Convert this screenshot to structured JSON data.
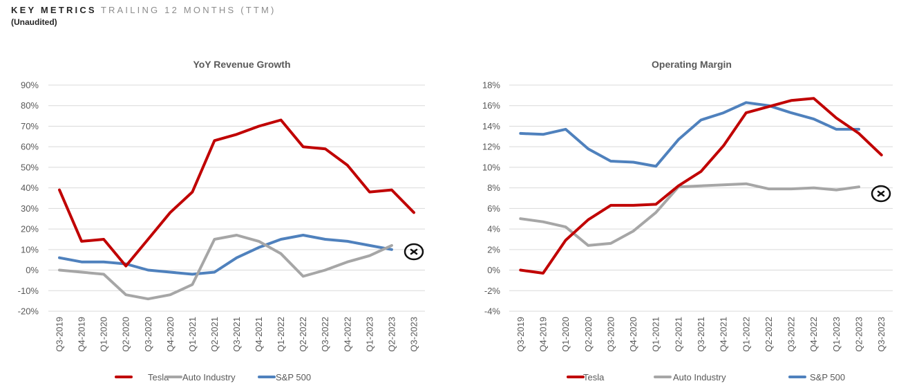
{
  "header": {
    "title": "KEY METRICS",
    "title_sub": "TRAILING 12 MONTHS (TTM)",
    "subtitle": "(Unaudited)"
  },
  "colors": {
    "tesla": "#c00000",
    "auto": "#a6a6a6",
    "sp500": "#4f81bd",
    "grid": "#d9d9d9"
  },
  "chart_data": [
    {
      "type": "line",
      "title": "YoY Revenue Growth",
      "categories": [
        "Q3-2019",
        "Q4-2019",
        "Q1-2020",
        "Q2-2020",
        "Q3-2020",
        "Q4-2020",
        "Q1-2021",
        "Q2-2021",
        "Q3-2021",
        "Q4-2021",
        "Q1-2022",
        "Q2-2022",
        "Q3-2022",
        "Q4-2022",
        "Q1-2023",
        "Q2-2023",
        "Q3-2023"
      ],
      "ylim": [
        -20,
        90
      ],
      "yticks": [
        -20,
        -10,
        0,
        10,
        20,
        30,
        40,
        50,
        60,
        70,
        80,
        90
      ],
      "ytick_labels": [
        "-20%",
        "-10%",
        "0%",
        "10%",
        "20%",
        "30%",
        "40%",
        "50%",
        "60%",
        "70%",
        "80%",
        "90%"
      ],
      "series": [
        {
          "name": "Tesla",
          "key": "tesla",
          "values": [
            39,
            14,
            15,
            2,
            15,
            28,
            38,
            63,
            66,
            70,
            73,
            60,
            59,
            51,
            38,
            39,
            28
          ]
        },
        {
          "name": "Auto Industry",
          "key": "auto",
          "values": [
            0,
            -1,
            -2,
            -12,
            -14,
            -12,
            -7,
            15,
            17,
            14,
            8,
            -3,
            0,
            4,
            7,
            12,
            null
          ]
        },
        {
          "name": "S&P 500",
          "key": "sp500",
          "values": [
            6,
            4,
            4,
            3,
            0,
            -1,
            -2,
            -1,
            6,
            11,
            15,
            17,
            15,
            14,
            12,
            10,
            null
          ]
        }
      ],
      "legend": [
        "Tesla",
        "Auto Industry",
        "S&P 500"
      ]
    },
    {
      "type": "line",
      "title": "Operating Margin",
      "categories": [
        "Q3-2019",
        "Q4-2019",
        "Q1-2020",
        "Q2-2020",
        "Q3-2020",
        "Q4-2020",
        "Q1-2021",
        "Q2-2021",
        "Q3-2021",
        "Q4-2021",
        "Q1-2022",
        "Q2-2022",
        "Q3-2022",
        "Q4-2022",
        "Q1-2023",
        "Q2-2023",
        "Q3-2023"
      ],
      "ylim": [
        -4,
        18
      ],
      "yticks": [
        -4,
        -2,
        0,
        2,
        4,
        6,
        8,
        10,
        12,
        14,
        16,
        18
      ],
      "ytick_labels": [
        "-4%",
        "-2%",
        "0%",
        "2%",
        "4%",
        "6%",
        "8%",
        "10%",
        "12%",
        "14%",
        "16%",
        "18%"
      ],
      "series": [
        {
          "name": "Tesla",
          "key": "tesla",
          "values": [
            0,
            -0.3,
            2.9,
            4.9,
            6.3,
            6.3,
            6.4,
            8.2,
            9.6,
            12.1,
            15.3,
            15.9,
            16.5,
            16.7,
            14.8,
            13.3,
            11.2
          ]
        },
        {
          "name": "Auto Industry",
          "key": "auto",
          "values": [
            5.0,
            4.7,
            4.2,
            2.4,
            2.6,
            3.8,
            5.6,
            8.1,
            8.2,
            8.3,
            8.4,
            7.9,
            7.9,
            8.0,
            7.8,
            8.1,
            null
          ]
        },
        {
          "name": "S&P 500",
          "key": "sp500",
          "values": [
            13.3,
            13.2,
            13.7,
            11.8,
            10.6,
            10.5,
            10.1,
            12.7,
            14.6,
            15.3,
            16.3,
            16.0,
            15.3,
            14.7,
            13.7,
            13.7,
            null
          ]
        }
      ],
      "legend": [
        "Tesla",
        "Auto Industry",
        "S&P 500"
      ]
    }
  ]
}
